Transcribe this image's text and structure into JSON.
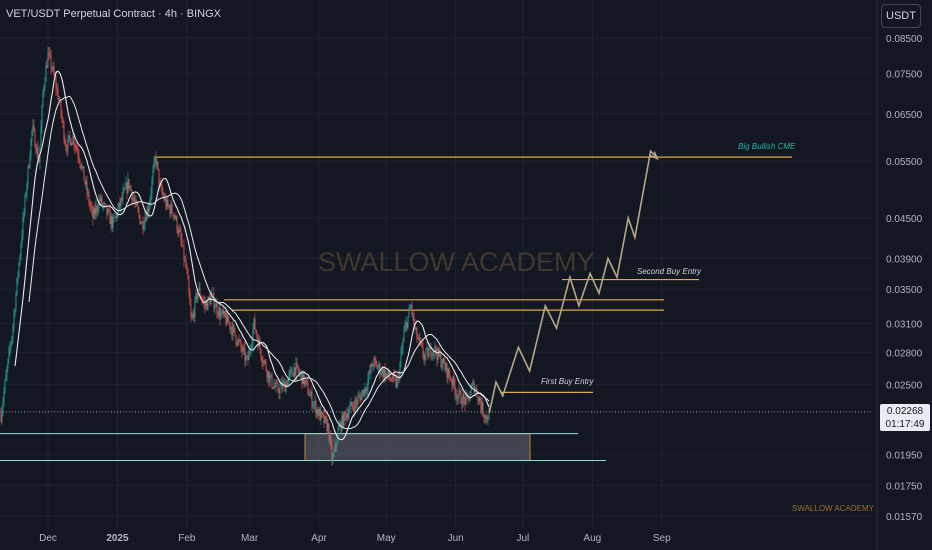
{
  "header": {
    "title": "VET/USDT Perpetual Contract · 4h · BINGX"
  },
  "currency_button": {
    "label": "USDT"
  },
  "watermarks": {
    "main": "SWALLOW ACADEMY",
    "small": "SWALLOW ACADEMY"
  },
  "current_price": {
    "value": "0.02268",
    "countdown": "01:17:49"
  },
  "colors": {
    "background": "#131722",
    "candle_up": "#26a69a",
    "candle_down": "#ef5350",
    "level_line": "#e0a84a",
    "zone_line": "#8fd8d8",
    "projection": "#b5a786",
    "ma": "#e8eaed"
  },
  "chart_data": {
    "type": "candlestick",
    "price_scale": "log",
    "y_ticks": [
      "0.08500",
      "0.07500",
      "0.06500",
      "0.05500",
      "0.04500",
      "0.03900",
      "0.03500",
      "0.03100",
      "0.02800",
      "0.02500",
      "0.01950",
      "0.01750",
      "0.01570"
    ],
    "x_ticks": [
      "Dec",
      "2025",
      "Feb",
      "Mar",
      "Apr",
      "May",
      "Jun",
      "Jul",
      "Aug",
      "Sep"
    ],
    "annotations": [
      {
        "label": "Big Bullish CME",
        "price": 0.0558
      },
      {
        "label": "Second Buy Entry",
        "price": 0.0362
      },
      {
        "label": "First Buy Entry",
        "price": 0.0243
      }
    ],
    "levels": [
      0.0558,
      0.0362,
      0.0337,
      0.0325,
      0.0243
    ],
    "support_zone": {
      "top": 0.021,
      "bottom": 0.0191
    },
    "support_lines": [
      0.021,
      0.0191
    ],
    "current_price": 0.02268,
    "price_path": [
      [
        "2024-11-10",
        0.0225
      ],
      [
        "2024-11-15",
        0.03
      ],
      [
        "2024-11-20",
        0.045
      ],
      [
        "2024-11-24",
        0.062
      ],
      [
        "2024-11-27",
        0.055
      ],
      [
        "2024-11-29",
        0.072
      ],
      [
        "2024-12-01",
        0.08
      ],
      [
        "2024-12-03",
        0.076
      ],
      [
        "2024-12-06",
        0.068
      ],
      [
        "2024-12-09",
        0.058
      ],
      [
        "2024-12-12",
        0.06
      ],
      [
        "2024-12-15",
        0.056
      ],
      [
        "2024-12-18",
        0.05
      ],
      [
        "2024-12-21",
        0.045
      ],
      [
        "2024-12-24",
        0.048
      ],
      [
        "2024-12-27",
        0.046
      ],
      [
        "2024-12-30",
        0.044
      ],
      [
        "2025-01-03",
        0.048
      ],
      [
        "2025-01-06",
        0.051
      ],
      [
        "2025-01-09",
        0.047
      ],
      [
        "2025-01-12",
        0.044
      ],
      [
        "2025-01-15",
        0.047
      ],
      [
        "2025-01-18",
        0.056
      ],
      [
        "2025-01-20",
        0.05
      ],
      [
        "2025-01-23",
        0.047
      ],
      [
        "2025-01-26",
        0.046
      ],
      [
        "2025-01-29",
        0.042
      ],
      [
        "2025-02-01",
        0.037
      ],
      [
        "2025-02-03",
        0.031
      ],
      [
        "2025-02-06",
        0.035
      ],
      [
        "2025-02-09",
        0.033
      ],
      [
        "2025-02-12",
        0.034
      ],
      [
        "2025-02-16",
        0.032
      ],
      [
        "2025-02-20",
        0.031
      ],
      [
        "2025-02-24",
        0.029
      ],
      [
        "2025-02-28",
        0.027
      ],
      [
        "2025-03-03",
        0.031
      ],
      [
        "2025-03-06",
        0.028
      ],
      [
        "2025-03-10",
        0.0255
      ],
      [
        "2025-03-13",
        0.0245
      ],
      [
        "2025-03-17",
        0.025
      ],
      [
        "2025-03-21",
        0.0265
      ],
      [
        "2025-03-25",
        0.0255
      ],
      [
        "2025-03-28",
        0.024
      ],
      [
        "2025-04-01",
        0.0225
      ],
      [
        "2025-04-05",
        0.0215
      ],
      [
        "2025-04-07",
        0.019
      ],
      [
        "2025-04-10",
        0.0215
      ],
      [
        "2025-04-14",
        0.0228
      ],
      [
        "2025-04-18",
        0.0235
      ],
      [
        "2025-04-22",
        0.0248
      ],
      [
        "2025-04-25",
        0.027
      ],
      [
        "2025-04-29",
        0.0262
      ],
      [
        "2025-05-03",
        0.0255
      ],
      [
        "2025-05-06",
        0.025
      ],
      [
        "2025-05-09",
        0.03
      ],
      [
        "2025-05-12",
        0.033
      ],
      [
        "2025-05-14",
        0.03
      ],
      [
        "2025-05-18",
        0.0275
      ],
      [
        "2025-05-22",
        0.0285
      ],
      [
        "2025-05-26",
        0.027
      ],
      [
        "2025-05-30",
        0.0255
      ],
      [
        "2025-06-02",
        0.024
      ],
      [
        "2025-06-06",
        0.0235
      ],
      [
        "2025-06-09",
        0.025
      ],
      [
        "2025-06-11",
        0.024
      ],
      [
        "2025-06-13",
        0.0228
      ],
      [
        "2025-06-15",
        0.0222
      ],
      [
        "2025-06-16",
        0.02268
      ]
    ],
    "projection_path": [
      [
        "2025-06-16",
        0.0226
      ],
      [
        "2025-06-19",
        0.0252
      ],
      [
        "2025-06-22",
        0.024
      ],
      [
        "2025-06-29",
        0.0285
      ],
      [
        "2025-07-04",
        0.0262
      ],
      [
        "2025-07-11",
        0.033
      ],
      [
        "2025-07-16",
        0.0305
      ],
      [
        "2025-07-22",
        0.0365
      ],
      [
        "2025-07-26",
        0.033
      ],
      [
        "2025-07-31",
        0.037
      ],
      [
        "2025-08-04",
        0.0345
      ],
      [
        "2025-08-08",
        0.039
      ],
      [
        "2025-08-12",
        0.0365
      ],
      [
        "2025-08-17",
        0.045
      ],
      [
        "2025-08-20",
        0.042
      ],
      [
        "2025-08-27",
        0.057
      ],
      [
        "2025-08-30",
        0.0555
      ]
    ]
  }
}
